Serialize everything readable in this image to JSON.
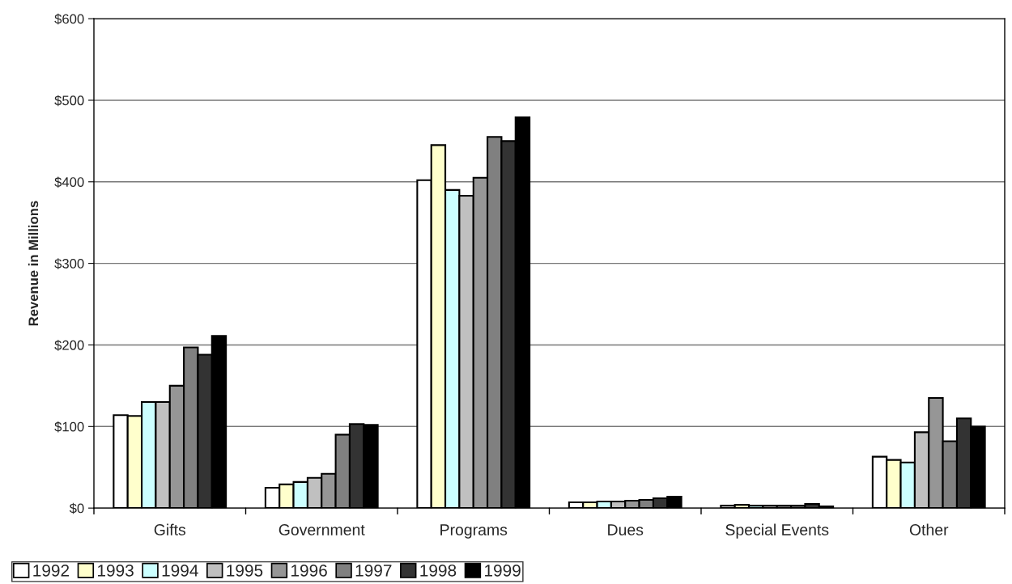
{
  "chart_data": {
    "type": "bar",
    "ylabel": "Revenue in Millions",
    "categories": [
      "Gifts",
      "Government",
      "Programs",
      "Dues",
      "Special Events",
      "Other"
    ],
    "series": [
      {
        "name": "1992",
        "color": "#ffffff",
        "values": [
          114,
          25,
          402,
          7,
          3,
          63
        ]
      },
      {
        "name": "1993",
        "color": "#ffffcc",
        "values": [
          113,
          29,
          445,
          7,
          4,
          59
        ]
      },
      {
        "name": "1994",
        "color": "#ccffff",
        "values": [
          130,
          32,
          390,
          8,
          3,
          56
        ]
      },
      {
        "name": "1995",
        "color": "#c0c0c0",
        "values": [
          130,
          37,
          383,
          8,
          3,
          93
        ]
      },
      {
        "name": "1996",
        "color": "#969696",
        "values": [
          150,
          42,
          405,
          9,
          3,
          135
        ]
      },
      {
        "name": "1997",
        "color": "#808080",
        "values": [
          197,
          90,
          455,
          10,
          3,
          82
        ]
      },
      {
        "name": "1998",
        "color": "#333333",
        "values": [
          188,
          103,
          450,
          12,
          5,
          110
        ]
      },
      {
        "name": "1999",
        "color": "#000000",
        "values": [
          211,
          102,
          479,
          14,
          2,
          100
        ]
      }
    ],
    "ylim": [
      0,
      600
    ],
    "yticks": [
      {
        "value": 0,
        "label": "$0"
      },
      {
        "value": 100,
        "label": "$100"
      },
      {
        "value": 200,
        "label": "$200"
      },
      {
        "value": 300,
        "label": "$300"
      },
      {
        "value": 400,
        "label": "$400"
      },
      {
        "value": 500,
        "label": "$500"
      },
      {
        "value": 600,
        "label": "$600"
      }
    ],
    "grid": "y",
    "legend": "bottom left"
  }
}
